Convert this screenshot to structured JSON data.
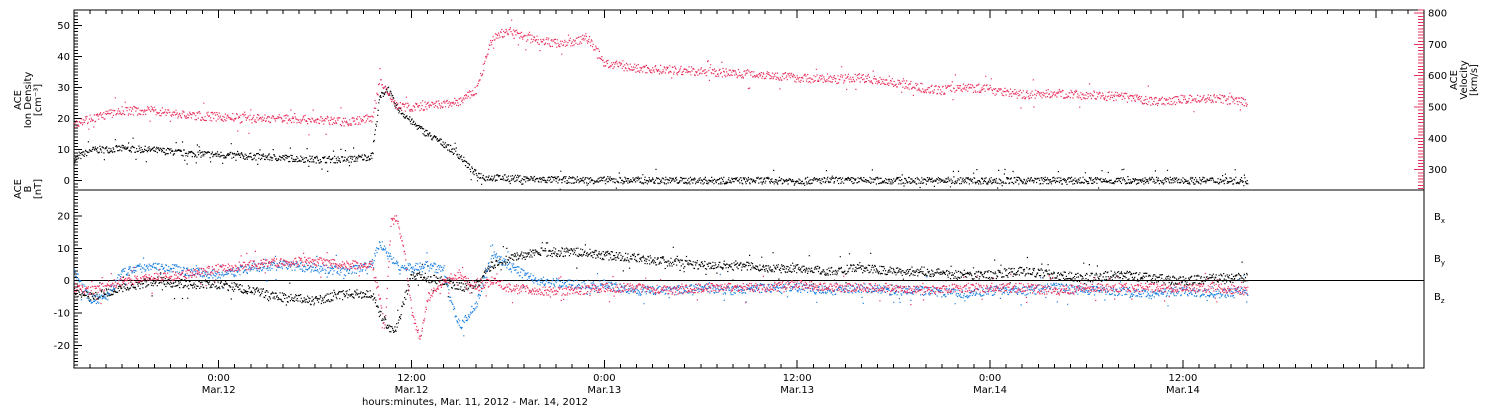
{
  "colors": {
    "black": "#000000",
    "blue": "#1a7fe0",
    "pink": "#e8305e"
  },
  "chart_data": [
    {
      "type": "scatter",
      "panel": "top",
      "ylabel_left": [
        "ACE",
        "Ion Density",
        "[cm⁻³]"
      ],
      "ylabel_right": [
        "ACE",
        "Velocity",
        "[km/s]"
      ],
      "left_ylim": [
        -3,
        55
      ],
      "left_ticks": [
        0,
        10,
        20,
        30,
        40,
        50
      ],
      "left_tick_labels": [
        "0",
        "10",
        "20",
        "30",
        "40",
        "50"
      ],
      "right_ylim": [
        235,
        810
      ],
      "right_ticks": [
        300,
        400,
        500,
        600,
        700,
        800
      ],
      "right_tick_labels": [
        "300",
        "400",
        "500",
        "600",
        "700",
        "800"
      ],
      "xlim_hours": [
        -9,
        75
      ],
      "series": [
        {
          "color": "black",
          "axis": "left",
          "points": [
            [
              -9,
              7
            ],
            [
              -8,
              10
            ],
            [
              -6,
              10.5
            ],
            [
              -4,
              10
            ],
            [
              -2,
              9
            ],
            [
              0,
              8.5
            ],
            [
              2,
              8
            ],
            [
              4,
              7.5
            ],
            [
              6,
              7
            ],
            [
              8,
              7
            ],
            [
              9.5,
              8
            ],
            [
              10,
              27
            ],
            [
              10.5,
              30
            ],
            [
              11,
              24
            ],
            [
              12,
              19
            ],
            [
              13,
              15
            ],
            [
              14,
              12
            ],
            [
              15,
              8
            ],
            [
              15.8,
              3
            ],
            [
              16.5,
              1.2
            ],
            [
              18,
              1
            ],
            [
              20,
              0.5
            ],
            [
              24,
              0.3
            ],
            [
              30,
              0.2
            ],
            [
              36,
              0.2
            ],
            [
              42,
              0.2
            ],
            [
              48,
              0.2
            ],
            [
              54,
              0.2
            ],
            [
              60,
              0.2
            ],
            [
              64,
              0.2
            ]
          ]
        },
        {
          "color": "pink",
          "axis": "right",
          "points": [
            [
              -9,
              450
            ],
            [
              -8,
              465
            ],
            [
              -6,
              490
            ],
            [
              -4,
              490
            ],
            [
              -2,
              475
            ],
            [
              0,
              470
            ],
            [
              2,
              465
            ],
            [
              4,
              465
            ],
            [
              6,
              460
            ],
            [
              8,
              455
            ],
            [
              9.5,
              465
            ],
            [
              10,
              580
            ],
            [
              10.5,
              550
            ],
            [
              11,
              505
            ],
            [
              12,
              500
            ],
            [
              13,
              505
            ],
            [
              14,
              510
            ],
            [
              15,
              520
            ],
            [
              16,
              555
            ],
            [
              17,
              720
            ],
            [
              18,
              745
            ],
            [
              19,
              725
            ],
            [
              20,
              715
            ],
            [
              21,
              705
            ],
            [
              22,
              710
            ],
            [
              23,
              720
            ],
            [
              24,
              640
            ],
            [
              26,
              625
            ],
            [
              28,
              620
            ],
            [
              30,
              615
            ],
            [
              32,
              610
            ],
            [
              34,
              605
            ],
            [
              36,
              595
            ],
            [
              38,
              590
            ],
            [
              40,
              595
            ],
            [
              42,
              580
            ],
            [
              44,
              560
            ],
            [
              45,
              555
            ],
            [
              46,
              565
            ],
            [
              48,
              560
            ],
            [
              50,
              540
            ],
            [
              52,
              545
            ],
            [
              54,
              540
            ],
            [
              56,
              535
            ],
            [
              58,
              520
            ],
            [
              60,
              525
            ],
            [
              62,
              530
            ],
            [
              64,
              515
            ]
          ]
        }
      ]
    },
    {
      "type": "scatter",
      "panel": "bottom",
      "ylabel": [
        "ACE",
        "B",
        "[nT]"
      ],
      "ylim": [
        -27,
        28
      ],
      "ticks": [
        -20,
        -10,
        0,
        10,
        20
      ],
      "tick_labels": [
        "-20",
        "-10",
        "0",
        "10",
        "20"
      ],
      "zero_line": true,
      "legend": "right",
      "series": [
        {
          "name": "B",
          "subscript": "x",
          "color": "black",
          "points": [
            [
              -9,
              -3
            ],
            [
              -8,
              -5
            ],
            [
              -6,
              -2
            ],
            [
              -4,
              0
            ],
            [
              -2,
              -1
            ],
            [
              0,
              -1
            ],
            [
              2,
              -3
            ],
            [
              4,
              -5
            ],
            [
              6,
              -6
            ],
            [
              8,
              -4
            ],
            [
              9.5,
              -4
            ],
            [
              10,
              -10
            ],
            [
              10.5,
              -14
            ],
            [
              11,
              -15
            ],
            [
              12,
              2
            ],
            [
              13,
              1
            ],
            [
              14,
              0
            ],
            [
              15,
              -2
            ],
            [
              16,
              -1
            ],
            [
              17,
              5
            ],
            [
              18,
              7
            ],
            [
              20,
              9
            ],
            [
              22,
              9
            ],
            [
              24,
              8
            ],
            [
              26,
              7
            ],
            [
              28,
              6
            ],
            [
              30,
              5
            ],
            [
              32,
              5
            ],
            [
              34,
              4
            ],
            [
              36,
              4
            ],
            [
              38,
              3
            ],
            [
              40,
              4
            ],
            [
              42,
              3
            ],
            [
              44,
              3
            ],
            [
              46,
              2
            ],
            [
              48,
              2
            ],
            [
              50,
              3
            ],
            [
              52,
              2
            ],
            [
              54,
              1
            ],
            [
              56,
              2
            ],
            [
              58,
              1
            ],
            [
              60,
              0
            ],
            [
              62,
              1
            ],
            [
              64,
              1
            ]
          ]
        },
        {
          "name": "B",
          "subscript": "y",
          "color": "blue",
          "points": [
            [
              -9,
              3
            ],
            [
              -8,
              -6
            ],
            [
              -7,
              -5
            ],
            [
              -6,
              3
            ],
            [
              -4,
              5
            ],
            [
              -2,
              3
            ],
            [
              0,
              2
            ],
            [
              2,
              4
            ],
            [
              4,
              5
            ],
            [
              6,
              4
            ],
            [
              8,
              3
            ],
            [
              9.5,
              5
            ],
            [
              10,
              12
            ],
            [
              10.5,
              8
            ],
            [
              11,
              5
            ],
            [
              12,
              4
            ],
            [
              13,
              5
            ],
            [
              14,
              3
            ],
            [
              14.5,
              -8
            ],
            [
              15,
              -14
            ],
            [
              16,
              -7
            ],
            [
              17,
              8
            ],
            [
              18,
              5
            ],
            [
              19,
              2
            ],
            [
              20,
              0
            ],
            [
              22,
              -1
            ],
            [
              24,
              -1
            ],
            [
              26,
              -3
            ],
            [
              28,
              -3
            ],
            [
              30,
              -2
            ],
            [
              32,
              -3
            ],
            [
              34,
              -2
            ],
            [
              36,
              -2
            ],
            [
              38,
              -3
            ],
            [
              40,
              -2
            ],
            [
              42,
              -3
            ],
            [
              44,
              -3
            ],
            [
              46,
              -4
            ],
            [
              48,
              -3
            ],
            [
              50,
              -3
            ],
            [
              52,
              -2
            ],
            [
              54,
              -3
            ],
            [
              56,
              -3
            ],
            [
              58,
              -4
            ],
            [
              60,
              -3
            ],
            [
              62,
              -4
            ],
            [
              64,
              -3
            ]
          ]
        },
        {
          "name": "B",
          "subscript": "z",
          "color": "pink",
          "points": [
            [
              -9,
              -2
            ],
            [
              -8,
              -3
            ],
            [
              -6,
              0
            ],
            [
              -4,
              1
            ],
            [
              -2,
              2
            ],
            [
              0,
              4
            ],
            [
              2,
              5
            ],
            [
              4,
              6
            ],
            [
              6,
              6
            ],
            [
              8,
              5
            ],
            [
              9.5,
              5
            ],
            [
              10,
              -5
            ],
            [
              10.3,
              -15
            ],
            [
              10.7,
              18
            ],
            [
              11,
              20
            ],
            [
              11.5,
              10
            ],
            [
              12,
              -10
            ],
            [
              12.5,
              -18
            ],
            [
              13,
              -5
            ],
            [
              14,
              0
            ],
            [
              15,
              2
            ],
            [
              16,
              -2
            ],
            [
              17,
              0
            ],
            [
              18,
              -2
            ],
            [
              20,
              -3
            ],
            [
              22,
              -3
            ],
            [
              24,
              -2
            ],
            [
              26,
              -2
            ],
            [
              28,
              -3
            ],
            [
              30,
              -2
            ],
            [
              32,
              -2
            ],
            [
              34,
              -2
            ],
            [
              36,
              -1
            ],
            [
              38,
              -2
            ],
            [
              40,
              -2
            ],
            [
              42,
              -2
            ],
            [
              44,
              -3
            ],
            [
              46,
              -2
            ],
            [
              48,
              -2
            ],
            [
              50,
              -2
            ],
            [
              52,
              -3
            ],
            [
              54,
              -2
            ],
            [
              56,
              -2
            ],
            [
              58,
              -2
            ],
            [
              60,
              -2
            ],
            [
              62,
              -2
            ],
            [
              64,
              -3
            ]
          ]
        }
      ]
    }
  ],
  "x_axis": {
    "major_ticks": [
      {
        "hours": 0,
        "time": "0:00",
        "date": "Mar.12"
      },
      {
        "hours": 12,
        "time": "12:00",
        "date": "Mar.12"
      },
      {
        "hours": 24,
        "time": "0:00",
        "date": "Mar.13"
      },
      {
        "hours": 36,
        "time": "12:00",
        "date": "Mar.13"
      },
      {
        "hours": 48,
        "time": "0:00",
        "date": "Mar.14"
      },
      {
        "hours": 60,
        "time": "12:00",
        "date": "Mar.14"
      }
    ],
    "label": "hours:minutes, Mar. 11, 2012 - Mar. 14, 2012"
  }
}
